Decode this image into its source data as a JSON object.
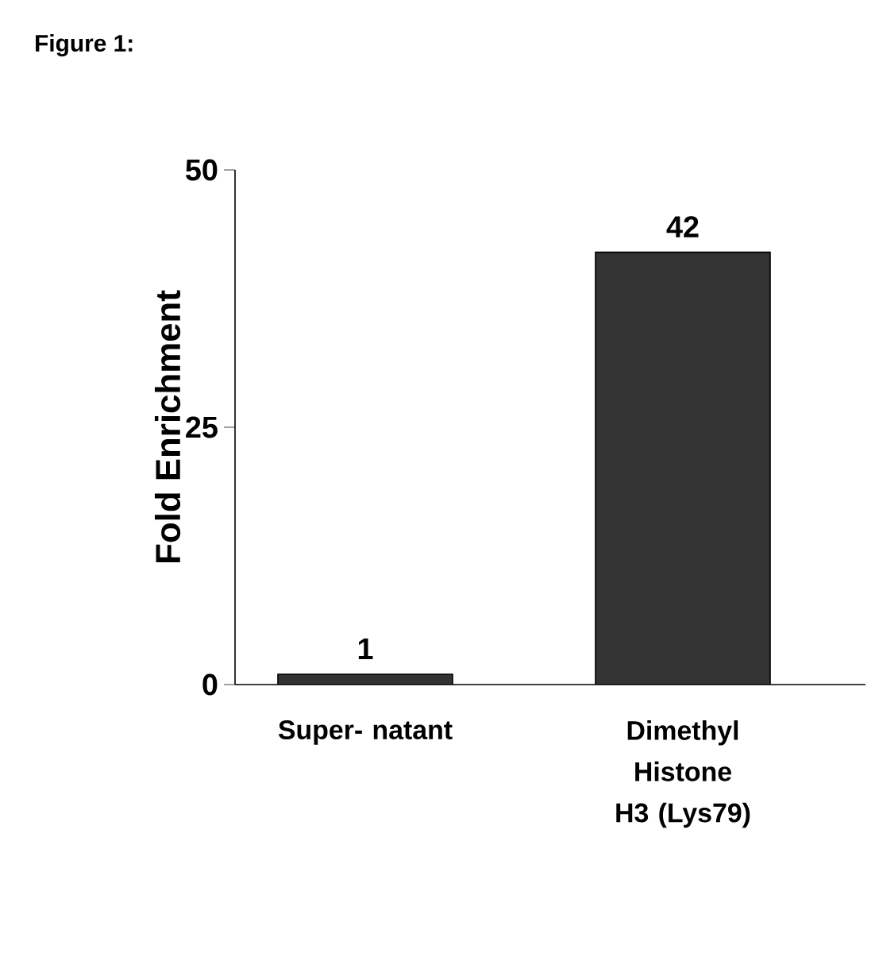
{
  "chart_data": {
    "type": "bar",
    "title": "Figure 1:",
    "ylabel": "Fold Enrichment",
    "categories": [
      "Super- natant",
      "Dimethyl Histone H3 (Lys79)"
    ],
    "values": [
      1,
      42
    ],
    "color": "#333333",
    "ylim": [
      0,
      50
    ],
    "yticks": [
      0,
      25,
      50
    ],
    "data_labels": true,
    "grid": false
  }
}
